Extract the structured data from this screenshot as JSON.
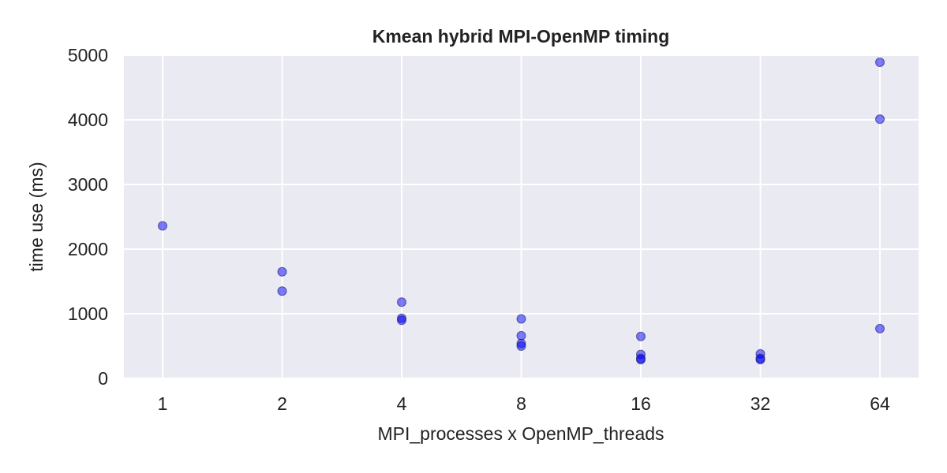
{
  "chart_data": {
    "type": "scatter",
    "title": "Kmean hybrid MPI-OpenMP timing",
    "xlabel": "MPI_processes x OpenMP_threads",
    "ylabel": "time use (ms)",
    "x_scale": "log2",
    "x_ticks": [
      1,
      2,
      4,
      8,
      16,
      32,
      64
    ],
    "x_tick_labels": [
      "1",
      "2",
      "4",
      "8",
      "16",
      "32",
      "64"
    ],
    "ylim": [
      0,
      5000
    ],
    "y_ticks": [
      0,
      1000,
      2000,
      3000,
      4000,
      5000
    ],
    "y_tick_labels": [
      "0",
      "1000",
      "2000",
      "3000",
      "4000",
      "5000"
    ],
    "grid": true,
    "background_color": "#eaeaf2",
    "marker_color": "#0000ff",
    "points": [
      {
        "x": 1,
        "y": 2360
      },
      {
        "x": 2,
        "y": 1650
      },
      {
        "x": 2,
        "y": 1350
      },
      {
        "x": 4,
        "y": 1180
      },
      {
        "x": 4,
        "y": 930
      },
      {
        "x": 4,
        "y": 900
      },
      {
        "x": 8,
        "y": 920
      },
      {
        "x": 8,
        "y": 660
      },
      {
        "x": 8,
        "y": 540
      },
      {
        "x": 8,
        "y": 500
      },
      {
        "x": 16,
        "y": 650
      },
      {
        "x": 16,
        "y": 370
      },
      {
        "x": 16,
        "y": 310
      },
      {
        "x": 16,
        "y": 290
      },
      {
        "x": 32,
        "y": 380
      },
      {
        "x": 32,
        "y": 310
      },
      {
        "x": 32,
        "y": 290
      },
      {
        "x": 64,
        "y": 4890
      },
      {
        "x": 64,
        "y": 4010
      },
      {
        "x": 64,
        "y": 770
      }
    ]
  }
}
